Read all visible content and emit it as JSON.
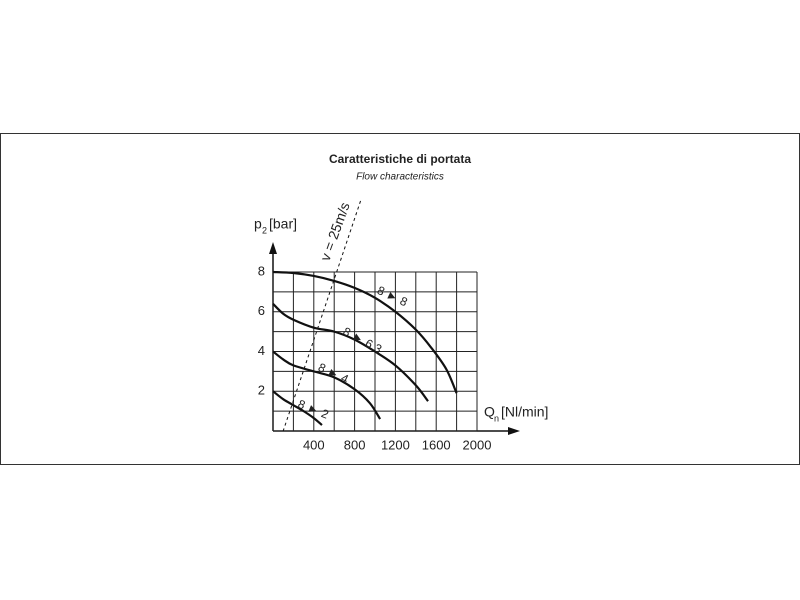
{
  "chart_data": {
    "type": "line",
    "title": "Caratteristiche di portata",
    "subtitle": "Flow characteristics",
    "y_label": {
      "main": "p",
      "sub": "2",
      "unit": "[bar]"
    },
    "x_label": {
      "main": "Q",
      "sub": "n",
      "unit": "[Nl/min]"
    },
    "xlim": [
      0,
      2000
    ],
    "ylim": [
      0,
      8
    ],
    "xticks": [
      400,
      800,
      1200,
      1600,
      2000
    ],
    "yticks": [
      2,
      4,
      6,
      8
    ],
    "x_grid": [
      0,
      200,
      400,
      600,
      800,
      1000,
      1200,
      1400,
      1600,
      1800,
      2000
    ],
    "y_grid": [
      0,
      1,
      2,
      3,
      4,
      5,
      6,
      7,
      8
    ],
    "color": "#111111",
    "series": [
      {
        "name": "8 ► 8",
        "x": [
          0,
          200,
          400,
          600,
          800,
          1000,
          1200,
          1400,
          1550,
          1700,
          1800
        ],
        "values": [
          8,
          7.95,
          7.8,
          7.55,
          7.2,
          6.7,
          6.0,
          5.1,
          4.2,
          3.1,
          1.9
        ]
      },
      {
        "name": "8 ► 6.3",
        "x": [
          0,
          100,
          200,
          400,
          600,
          800,
          1000,
          1200,
          1400,
          1520
        ],
        "values": [
          6.4,
          5.9,
          5.6,
          5.2,
          5.0,
          4.6,
          4.0,
          3.3,
          2.3,
          1.5
        ]
      },
      {
        "name": "8 ► 4",
        "x": [
          0,
          100,
          200,
          400,
          600,
          800,
          950,
          1050
        ],
        "values": [
          4.0,
          3.6,
          3.3,
          3.0,
          2.7,
          2.1,
          1.4,
          0.6
        ]
      },
      {
        "name": "8 ► 2",
        "x": [
          0,
          100,
          200,
          300,
          400,
          480
        ],
        "values": [
          2.0,
          1.6,
          1.3,
          1.0,
          0.65,
          0.3
        ]
      }
    ],
    "reference_line": {
      "name": "v = 25m/s",
      "x": [
        80,
        860
      ],
      "values": [
        -0.3,
        11.6
      ]
    }
  }
}
